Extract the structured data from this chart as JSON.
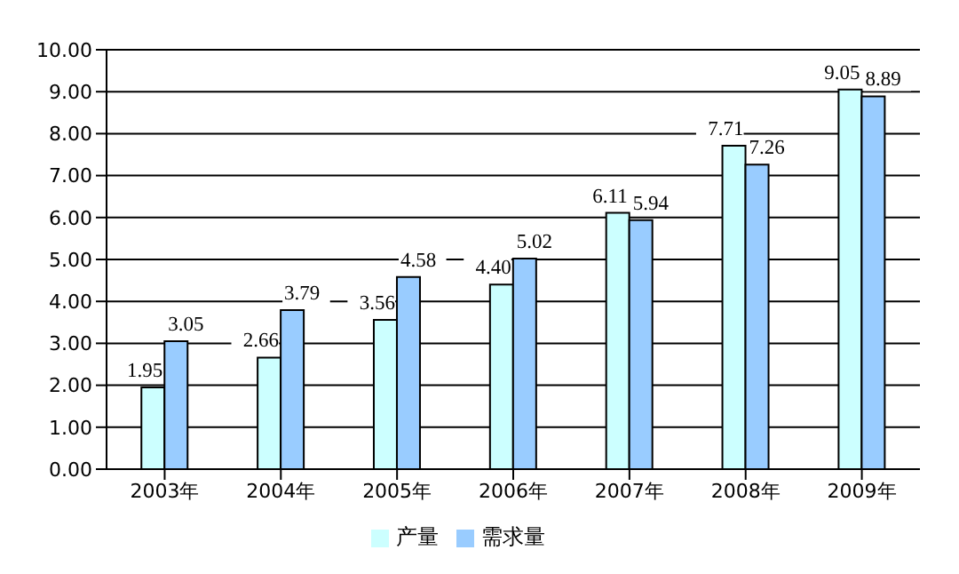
{
  "chart_data": {
    "type": "bar",
    "categories": [
      "2003年",
      "2004年",
      "2005年",
      "2006年",
      "2007年",
      "2008年",
      "2009年"
    ],
    "series": [
      {
        "name": "产量",
        "color": "#ccffff",
        "values": [
          1.95,
          2.66,
          3.56,
          4.4,
          6.11,
          7.71,
          9.05
        ],
        "value_labels": [
          "1.95",
          "2.66",
          "3.56",
          "4.40",
          "6.11",
          "7.71",
          "9.05"
        ]
      },
      {
        "name": "需求量",
        "color": "#99ccff",
        "values": [
          3.05,
          3.79,
          4.58,
          5.02,
          5.94,
          7.26,
          8.89
        ],
        "value_labels": [
          "3.05",
          "3.79",
          "4.58",
          "5.02",
          "5.94",
          "7.26",
          "8.89"
        ]
      }
    ],
    "ylim": [
      0,
      10
    ],
    "yticks": [
      {
        "value": 0,
        "label": "0.00"
      },
      {
        "value": 1,
        "label": "1.00"
      },
      {
        "value": 2,
        "label": "2.00"
      },
      {
        "value": 3,
        "label": "3.00"
      },
      {
        "value": 4,
        "label": "4.00"
      },
      {
        "value": 5,
        "label": "5.00"
      },
      {
        "value": 6,
        "label": "6.00"
      },
      {
        "value": 7,
        "label": "7.00"
      },
      {
        "value": 8,
        "label": "8.00"
      },
      {
        "value": 9,
        "label": "9.00"
      },
      {
        "value": 10,
        "label": "10.00"
      }
    ],
    "grid": "y",
    "legend": "bottom"
  }
}
